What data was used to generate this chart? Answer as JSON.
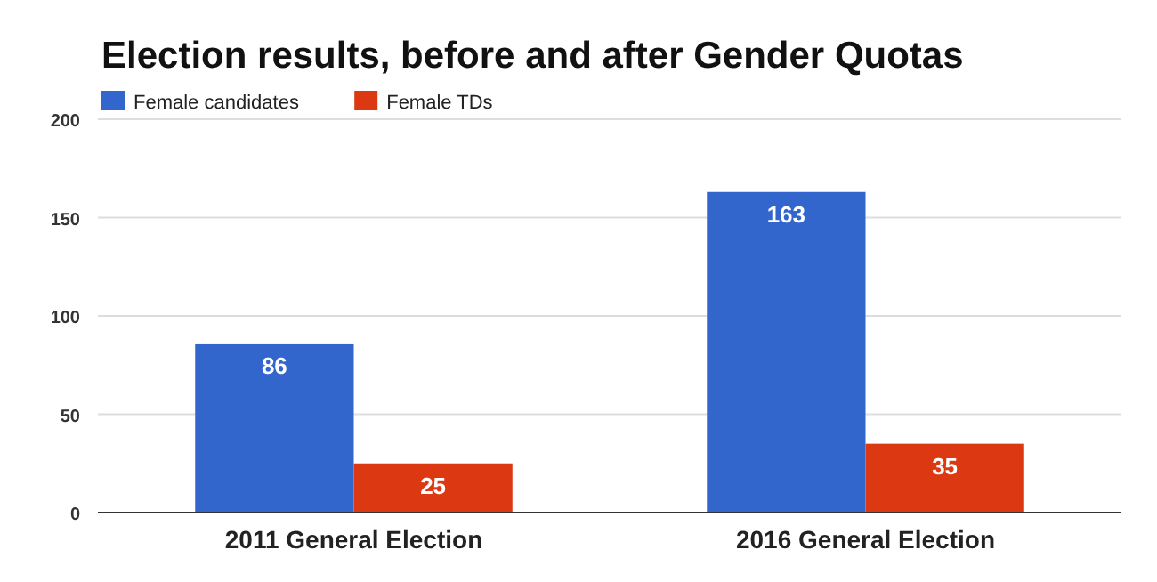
{
  "chart_data": {
    "type": "bar",
    "title": "Election results, before and after Gender Quotas",
    "categories": [
      "2011 General Election",
      "2016 General Election"
    ],
    "series": [
      {
        "name": "Female candidates",
        "color": "#3366cc",
        "values": [
          86,
          163
        ]
      },
      {
        "name": "Female TDs",
        "color": "#dc3912",
        "values": [
          25,
          35
        ]
      }
    ],
    "ylim": [
      0,
      200
    ],
    "yticks": [
      0,
      50,
      100,
      150,
      200
    ],
    "grid": "y",
    "legend": "top left",
    "data_labels": true
  }
}
